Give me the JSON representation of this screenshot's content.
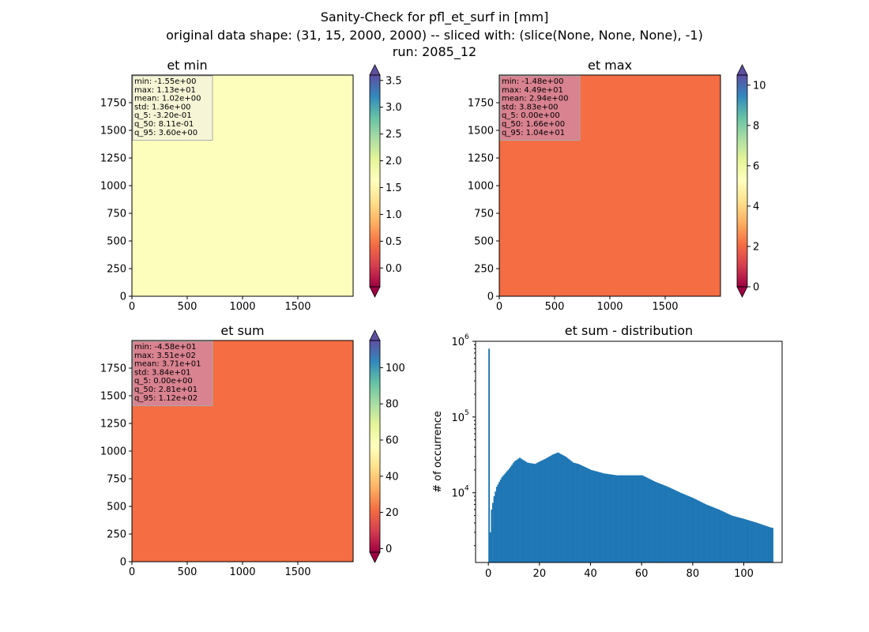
{
  "figure": {
    "title_lines": [
      "Sanity-Check for pfl_et_surf in [mm]",
      "original data shape: (31, 15, 2000, 2000) -- sliced with: (slice(None, None, None), -1)",
      "run: 2085_12"
    ],
    "colormap": "Spectral",
    "colormap_stops": [
      "#9e0142",
      "#d53e4f",
      "#f46d43",
      "#fdae61",
      "#fee08b",
      "#ffffbf",
      "#e6f598",
      "#abdda4",
      "#66c2a5",
      "#3288bd",
      "#5e4fa2"
    ],
    "histogram_color": "#1f77b4"
  },
  "chart_data": [
    {
      "type": "heatmap",
      "title": "et min",
      "xlim": [
        0,
        2000
      ],
      "ylim": [
        0,
        2000
      ],
      "xticks": [
        0,
        500,
        1000,
        1500
      ],
      "yticks": [
        0,
        250,
        500,
        750,
        1000,
        1250,
        1500,
        1750
      ],
      "colorbar": {
        "range": [
          -0.35,
          3.6
        ],
        "ticks": [
          0.0,
          0.5,
          1.0,
          1.5,
          2.0,
          2.5,
          3.0,
          3.5
        ],
        "tick_labels": [
          "0.0",
          "0.5",
          "1.0",
          "1.5",
          "2.0",
          "2.5",
          "3.0",
          "3.5"
        ],
        "extend": "both"
      },
      "stats_box": {
        "lines": [
          "min: -1.55e+00",
          "max: 1.13e+01",
          "mean: 1.02e+00",
          "std: 1.36e+00",
          "q_5: -3.20e-01",
          "q_50: 8.11e-01",
          "q_95: 3.60e+00"
        ],
        "background": "#f5f5dc"
      }
    },
    {
      "type": "heatmap",
      "title": "et max",
      "xlim": [
        0,
        2000
      ],
      "ylim": [
        0,
        2000
      ],
      "xticks": [
        0,
        500,
        1000,
        1500
      ],
      "yticks": [
        0,
        250,
        500,
        750,
        1000,
        1250,
        1500,
        1750
      ],
      "colorbar": {
        "range": [
          0,
          10.5
        ],
        "ticks": [
          0,
          2,
          4,
          6,
          8,
          10
        ],
        "tick_labels": [
          "0",
          "2",
          "4",
          "6",
          "8",
          "10"
        ],
        "extend": "both"
      },
      "stats_box": {
        "lines": [
          "min: -1.48e+00",
          "max: 4.49e+01",
          "mean: 2.94e+00",
          "std: 3.83e+00",
          "q_5: 0.00e+00",
          "q_50: 1.66e+00",
          "q_95: 1.04e+01"
        ],
        "background": "#d4869e"
      }
    },
    {
      "type": "heatmap",
      "title": "et sum",
      "xlim": [
        0,
        2000
      ],
      "ylim": [
        0,
        2000
      ],
      "xticks": [
        0,
        500,
        1000,
        1500
      ],
      "yticks": [
        0,
        250,
        500,
        750,
        1000,
        1250,
        1500,
        1750
      ],
      "colorbar": {
        "range": [
          -2,
          115
        ],
        "ticks": [
          0,
          20,
          40,
          60,
          80,
          100
        ],
        "tick_labels": [
          "0",
          "20",
          "40",
          "60",
          "80",
          "100"
        ],
        "extend": "both"
      },
      "stats_box": {
        "lines": [
          "min: -4.58e+01",
          "max: 3.51e+02",
          "mean: 3.71e+01",
          "std: 3.84e+01",
          "q_5: 0.00e+00",
          "q_50: 2.81e+01",
          "q_95: 1.12e+02"
        ],
        "background": "#d4869e"
      }
    },
    {
      "type": "bar",
      "title": "et sum - distribution",
      "xlabel": "",
      "ylabel": "# of occurrence",
      "yscale": "log",
      "xlim": [
        -5,
        115
      ],
      "ylim": [
        1200,
        1000000
      ],
      "xticks": [
        0,
        20,
        40,
        60,
        80,
        100
      ],
      "yticks": [
        10000,
        100000,
        1000000
      ],
      "ytick_labels": [
        [
          "10",
          "4"
        ],
        [
          "10",
          "5"
        ],
        [
          "10",
          "6"
        ]
      ],
      "bin_width": 0.5,
      "profile_x": [
        0,
        0.5,
        1,
        2,
        3,
        5,
        8,
        10,
        12,
        15,
        18,
        20,
        22,
        25,
        27,
        30,
        33,
        35,
        40,
        45,
        50,
        55,
        60,
        65,
        70,
        75,
        80,
        85,
        90,
        95,
        100,
        105,
        110,
        111.5
      ],
      "profile_y": [
        800000,
        3000,
        6000,
        9000,
        12000,
        16000,
        21000,
        26000,
        29000,
        25000,
        24000,
        26000,
        28000,
        32000,
        34000,
        30000,
        25000,
        24000,
        20000,
        18000,
        17000,
        17000,
        17000,
        14000,
        12000,
        10000,
        8500,
        7000,
        6000,
        5000,
        4500,
        4000,
        3500,
        3400
      ]
    }
  ]
}
